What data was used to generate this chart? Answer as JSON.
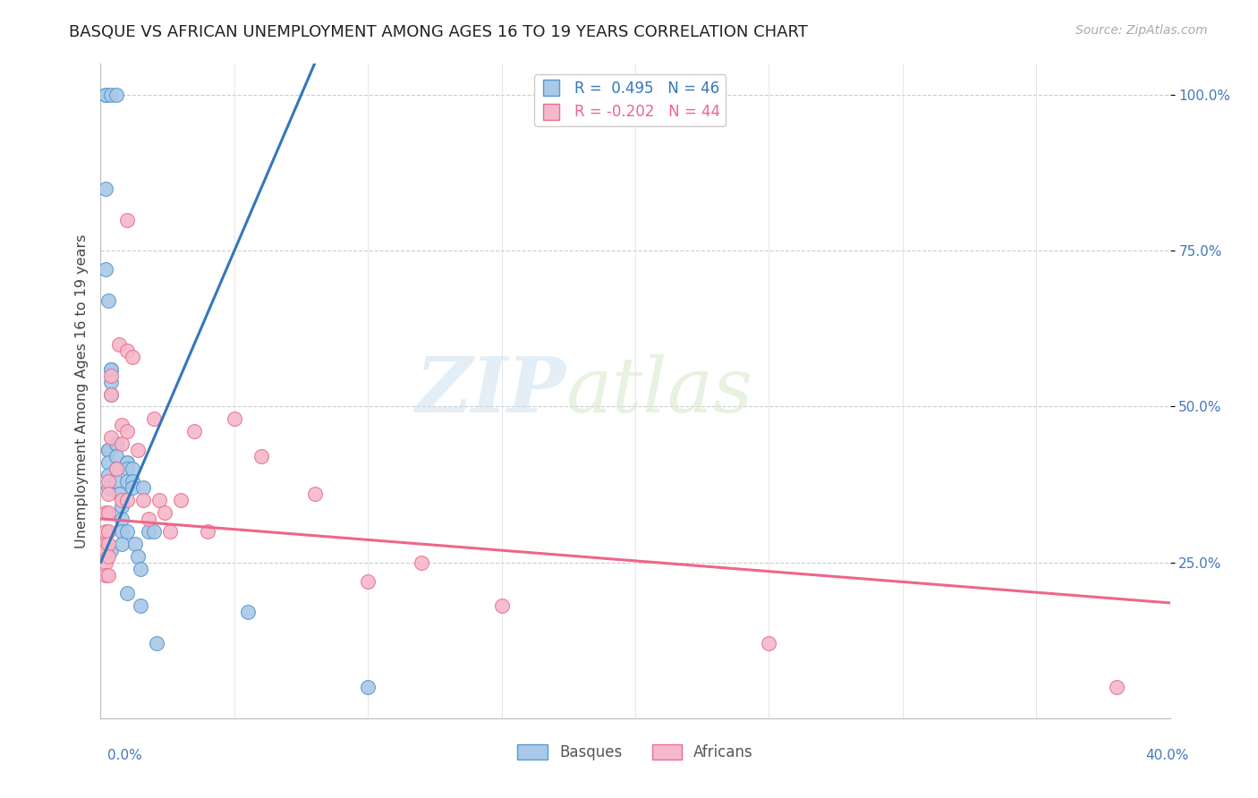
{
  "title": "BASQUE VS AFRICAN UNEMPLOYMENT AMONG AGES 16 TO 19 YEARS CORRELATION CHART",
  "source": "Source: ZipAtlas.com",
  "ylabel": "Unemployment Among Ages 16 to 19 years",
  "xlim": [
    0.0,
    0.4
  ],
  "ylim": [
    0.0,
    1.05
  ],
  "yticks": [
    0.25,
    0.5,
    0.75,
    1.0
  ],
  "ytick_labels": [
    "25.0%",
    "50.0%",
    "75.0%",
    "100.0%"
  ],
  "legend_blue": "R =  0.495   N = 46",
  "legend_pink": "R = -0.202   N = 44",
  "watermark_zip": "ZIP",
  "watermark_atlas": "atlas",
  "blue_color": "#aac8e8",
  "pink_color": "#f5b8ca",
  "blue_edge_color": "#5599cc",
  "pink_edge_color": "#e87090",
  "blue_line_color": "#3377bb",
  "pink_line_color": "#ee6688",
  "blue_trend_x": [
    0.0,
    0.08
  ],
  "blue_trend_y": [
    0.25,
    1.05
  ],
  "pink_trend_x": [
    0.0,
    0.4
  ],
  "pink_trend_y": [
    0.32,
    0.185
  ],
  "basques_x": [
    0.002,
    0.002,
    0.004,
    0.006,
    0.002,
    0.002,
    0.003,
    0.003,
    0.003,
    0.003,
    0.003,
    0.003,
    0.004,
    0.004,
    0.004,
    0.004,
    0.004,
    0.006,
    0.006,
    0.006,
    0.006,
    0.006,
    0.007,
    0.008,
    0.008,
    0.008,
    0.008,
    0.01,
    0.01,
    0.01,
    0.01,
    0.01,
    0.01,
    0.012,
    0.012,
    0.012,
    0.013,
    0.014,
    0.015,
    0.015,
    0.016,
    0.018,
    0.02,
    0.021,
    0.055,
    0.1
  ],
  "basques_y": [
    1.0,
    1.0,
    1.0,
    1.0,
    0.85,
    0.72,
    0.67,
    0.43,
    0.43,
    0.41,
    0.39,
    0.37,
    0.56,
    0.56,
    0.54,
    0.52,
    0.27,
    0.44,
    0.44,
    0.42,
    0.4,
    0.38,
    0.36,
    0.34,
    0.32,
    0.3,
    0.28,
    0.41,
    0.41,
    0.4,
    0.38,
    0.3,
    0.2,
    0.4,
    0.38,
    0.37,
    0.28,
    0.26,
    0.24,
    0.18,
    0.37,
    0.3,
    0.3,
    0.12,
    0.17,
    0.05
  ],
  "africans_x": [
    0.002,
    0.002,
    0.002,
    0.002,
    0.002,
    0.002,
    0.003,
    0.003,
    0.003,
    0.003,
    0.003,
    0.003,
    0.003,
    0.004,
    0.004,
    0.004,
    0.006,
    0.007,
    0.008,
    0.008,
    0.008,
    0.01,
    0.01,
    0.01,
    0.01,
    0.012,
    0.014,
    0.016,
    0.018,
    0.02,
    0.022,
    0.024,
    0.026,
    0.03,
    0.035,
    0.04,
    0.05,
    0.06,
    0.08,
    0.1,
    0.12,
    0.15,
    0.25,
    0.38
  ],
  "africans_y": [
    0.33,
    0.3,
    0.28,
    0.27,
    0.25,
    0.23,
    0.38,
    0.36,
    0.33,
    0.3,
    0.28,
    0.26,
    0.23,
    0.55,
    0.52,
    0.45,
    0.4,
    0.6,
    0.47,
    0.44,
    0.35,
    0.8,
    0.59,
    0.46,
    0.35,
    0.58,
    0.43,
    0.35,
    0.32,
    0.48,
    0.35,
    0.33,
    0.3,
    0.35,
    0.46,
    0.3,
    0.48,
    0.42,
    0.36,
    0.22,
    0.25,
    0.18,
    0.12,
    0.05
  ],
  "background_color": "#ffffff",
  "grid_color": "#cccccc",
  "title_color": "#222222",
  "source_color": "#aaaaaa",
  "axis_label_color": "#4477bb",
  "ylabel_color": "#444444"
}
